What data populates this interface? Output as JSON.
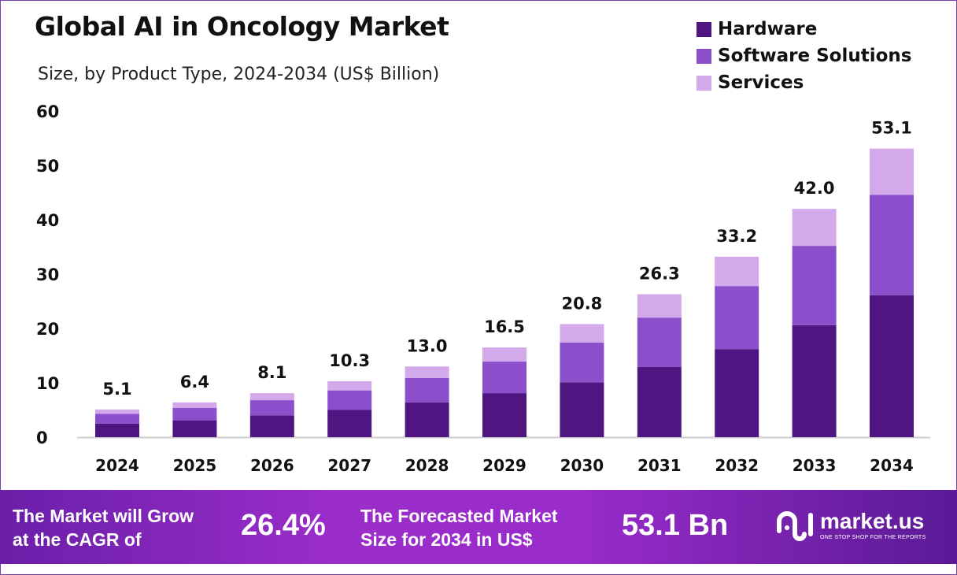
{
  "chart_data": {
    "type": "bar",
    "stacked": true,
    "title": "Global AI in Oncology Market",
    "subtitle": "Size, by Product Type, 2024-2034 (US$ Billion)",
    "categories": [
      "2024",
      "2025",
      "2026",
      "2027",
      "2028",
      "2029",
      "2030",
      "2031",
      "2032",
      "2033",
      "2034"
    ],
    "series": [
      {
        "name": "Hardware",
        "color": "#4f1580",
        "values": [
          2.5,
          3.1,
          4.0,
          5.0,
          6.4,
          8.1,
          10.1,
          12.9,
          16.2,
          20.6,
          26.1
        ]
      },
      {
        "name": "Software Solutions",
        "color": "#8c4fcb",
        "values": [
          1.8,
          2.3,
          2.8,
          3.6,
          4.5,
          5.8,
          7.3,
          9.1,
          11.6,
          14.6,
          18.5
        ]
      },
      {
        "name": "Services",
        "color": "#d3a9ec",
        "values": [
          0.8,
          1.0,
          1.3,
          1.7,
          2.1,
          2.6,
          3.4,
          4.3,
          5.4,
          6.8,
          8.5
        ]
      }
    ],
    "totals": [
      "5.1",
      "6.4",
      "8.1",
      "10.3",
      "13.0",
      "16.5",
      "20.8",
      "26.3",
      "33.2",
      "42.0",
      "53.1"
    ],
    "yticks": [
      "0",
      "10",
      "20",
      "30",
      "40",
      "50",
      "60"
    ],
    "ylim": [
      0,
      60
    ],
    "grid": false,
    "legend": "top-right"
  },
  "banner": {
    "cagr_text": "The Market will Grow at the CAGR of",
    "cagr_line1": "The Market will Grow",
    "cagr_line2": "at the CAGR of",
    "cagr_value": "26.4%",
    "forecast_line1": "The Forecasted Market",
    "forecast_line2": "Size for 2034 in US$",
    "forecast_value": "53.1 Bn",
    "logo_name": "market.us",
    "logo_tagline": "ONE STOP SHOP FOR THE REPORTS"
  }
}
